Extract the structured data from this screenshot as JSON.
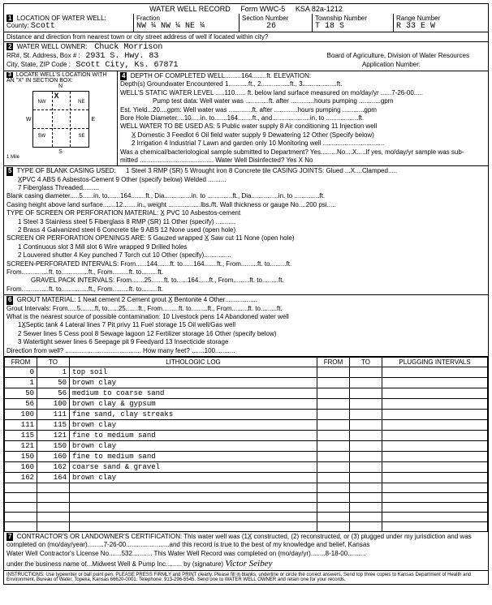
{
  "header": {
    "title": "WATER WELL RECORD",
    "form": "Form WWC-5",
    "ksa": "KSA 82a-1212"
  },
  "sec1": {
    "label": "LOCATION OF WATER WELL:",
    "county_label": "County:",
    "county": "Scott",
    "fraction_label": "Fraction",
    "fraction": "NW ¼  NW ¼  NE ¼",
    "section_label": "Section Number",
    "section": "26",
    "township_label": "Township Number",
    "township": "T  18  S",
    "range_label": "Range Number",
    "range": "R  33  E W",
    "distance": "Distance and direction from nearest town or city street address of well if located within city?"
  },
  "sec2": {
    "label": "WATER WELL OWNER:",
    "owner": "Chuck Morrison",
    "addr_label": "RR#, St. Address, Box #  :",
    "addr": "2931 S. Hwy. 83",
    "city_label": "City, State, ZIP Code  :",
    "city": "Scott City, Ks.  67871",
    "board": "Board of Agriculture, Division of Water Resources",
    "appno": "Application Number:"
  },
  "sec3": {
    "label": "LOCATE WELL'S LOCATION WITH AN \"X\" IN SECTION BOX:"
  },
  "sec4": {
    "label": "DEPTH OF COMPLETED WELL.........164........ft. ELEVATION:",
    "l1": "Depth(s) Groundwater Encountered 1...........ft., 2................ft., 3...................ft.",
    "l2": "WELL'S STATIC WATER LEVEL .....110...... ft. below land surface measured on mo/day/yr ......7-26-00.....",
    "l3": "Pump test data:  Well water was .............ft. after .............hours pumping ............gpm",
    "l4": "Est. Yield...20....gpm:  Well water was .............ft. after .............hours pumping ............gpm",
    "l5": "Bore Hole Diameter....10.....in. to.......164........ft., and.....................in. to ..................ft.",
    "l6": "WELL WATER TO BE USED AS:       5 Public water supply      8 Air conditioning       11 Injection well",
    "l7": "X̲ Domestic      3 Feedlot       6 Oil field water supply    9 Dewatering            12 Other (Specify below)",
    "l8": "2 Irrigation      4 Industrial     7 Lawn and garden only  10 Monitoring well ..................................",
    "l9": "Was a chemical/bacteriological sample submitted to Department? Yes.........No....X.....If yes, mo/day/yr sample was sub-",
    "l10": "mitted .........................................                    Water Well Disinfected? Yes    X        No"
  },
  "sec5": {
    "label": "TYPE OF BLANK CASING USED:",
    "r1": "1 Steel             3 RMP (SR)         5 Wrought iron        8 Concrete tile         CASING JOINTS: Glued ...X....Clamped.....",
    "r2": "X̲PVC             4 ABS             6 Asbestos-Cement    9 Other (specify below)               Welded ..........",
    "r3": "                                       7 Fiberglass                                              Threaded.........",
    "r4": "Blank casing diameter.....5......in. to.......164........ft., Dia...............in. to ..............ft., Dia...............in. to ..............ft.",
    "r5": "Casing height above land surface.......12........in., weight ..................lbs./ft. Wall thickness or gauge No....200 psi.....",
    "r6": "TYPE OF SCREEN OR PERFORATION MATERIAL:                   X̲ PVC                   10 Asbestos-cement",
    "r7": "1 Steel            3 Stainless steel     5 Fiberglass         8 RMP (SR)              11 Other (specify) ...........",
    "r8": "2 Brass           4 Galvanized steel    6 Concrete tile       9 ABS                   12 None used (open hole)",
    "r9": "SCREEN OR PERFORATION OPENINGS ARE:           5 Gauzed wrapped         X̲  Saw cut        11 None (open hole)",
    "r10": "1 Continuous slot     3 Mill slot                6 Wire wrapped            9 Drilled holes",
    "r11": "2 Louvered shutter    4 Key punched             7 Torch cut              10 Other (specify)...............",
    "r12": "SCREEN-PERFORATED INTERVALS:  From......144.......ft. to......164.......ft., From.........ft. to.........ft.",
    "r13": "                               From...............ft. to...............ft., From.........ft. to.........ft.",
    "r14": "GRAVEL PACK INTERVALS:        From.......25.......ft. to......164......ft., From.........ft. to.........ft.",
    "r15": "                               From...............ft. to...............ft., From.........ft. to.........ft."
  },
  "sec6": {
    "label": "GROUT MATERIAL:       1 Neat cement       2 Cement grout       X̲ Bentonite       4 Other..................",
    "l1": "Grout Intervals:  From.....5........ft. to......25.......ft., From.........ft. to.........ft., From.........ft. to.........ft.",
    "l2": "What is the nearest source of possible contamination:                    10 Livestock pens           14 Abandoned water well",
    "l3": "1X̲Septic tank        4 Lateral lines      7 Pit privy              11 Fuel storage             15 Oil well/Gas well",
    "l4": "2 Sewer lines        5 Cess pool         8 Sewage lagoon          12 Fertilizer storage        16 Other (specify below)",
    "l5": "3 Watertight sewer lines  6 Seepage pit   9 Feedyard              13 Insecticide storage",
    "l6": "Direction from well? ..........................................       How many feet? .......100..........."
  },
  "log": {
    "h_from": "FROM",
    "h_to": "TO",
    "h_lith": "LITHOLOGIC LOG",
    "h_plug": "PLUGGING INTERVALS",
    "rows": [
      {
        "f": "0",
        "t": "1",
        "d": "top soil"
      },
      {
        "f": "1",
        "t": "50",
        "d": "brown clay"
      },
      {
        "f": "50",
        "t": "56",
        "d": "medium to coarse sand"
      },
      {
        "f": "56",
        "t": "100",
        "d": "brown clay & gypsum"
      },
      {
        "f": "100",
        "t": "111",
        "d": "fine sand, clay streaks"
      },
      {
        "f": "111",
        "t": "115",
        "d": "brown clay"
      },
      {
        "f": "115",
        "t": "121",
        "d": "fine to medium sand"
      },
      {
        "f": "121",
        "t": "150",
        "d": "brown clay"
      },
      {
        "f": "150",
        "t": "160",
        "d": "fine to medium sand"
      },
      {
        "f": "160",
        "t": "162",
        "d": "coarse sand & gravel"
      },
      {
        "f": "162",
        "t": "164",
        "d": "brown clay"
      },
      {
        "f": "",
        "t": "",
        "d": ""
      },
      {
        "f": "",
        "t": "",
        "d": ""
      },
      {
        "f": "",
        "t": "",
        "d": ""
      },
      {
        "f": "",
        "t": "",
        "d": ""
      },
      {
        "f": "",
        "t": "",
        "d": ""
      }
    ]
  },
  "sec7": {
    "text1": "CONTRACTOR'S OR LANDOWNER'S CERTIFICATION: This water well was (1X̲ constructed, (2) reconstructed, or (3) plugged under my jurisdiction and was",
    "text2": "completed on (mo/day/year).........7-26-00........................and this record is true to the best of my knowledge and belief. Kansas",
    "text3": "Water Well Contractor's License No.......532........... This Water Well Record was completed on (mo/day/yr)........8-18-00..........",
    "text4": "under the business name of...Midwest Well & Pump Inc......... by (signature)",
    "sig": "Victor Seibey"
  },
  "footer": "INSTRUCTIONS: Use typewriter or ball point pen. PLEASE PRESS FIRMLY and PRINT clearly. Please fill in blanks, underline or circle the correct answers. Send top three copies to Kansas Department of Health and Environment, Bureau of Water, Topeka, Kansas 66620-0001. Telephone: 913-296-5545. Send one to WATER WELL OWNER and retain one for your records."
}
